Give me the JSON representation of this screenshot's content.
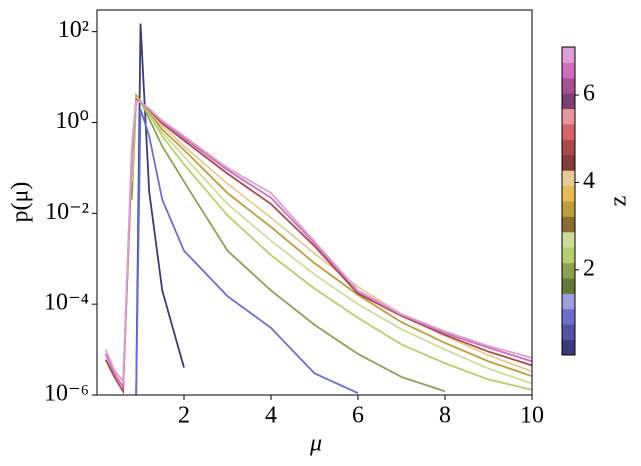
{
  "chart_data": {
    "type": "line",
    "x_label": "μ",
    "y_label": "p(μ)",
    "log_y": true,
    "x": [
      0.2,
      0.4,
      0.6,
      0.8,
      0.9,
      1.0,
      1.2,
      1.5,
      2,
      3,
      4,
      5,
      6,
      7,
      8,
      9,
      10
    ],
    "xlim": [
      0,
      10
    ],
    "xticks": [
      2,
      4,
      6,
      8,
      10
    ],
    "ylim": [
      1e-06,
      300
    ],
    "yticks": [
      {
        "value": 1e-06,
        "label": "10⁻⁶"
      },
      {
        "value": 0.0001,
        "label": "10⁻⁴"
      },
      {
        "value": 0.01,
        "label": "10⁻²"
      },
      {
        "value": 1,
        "label": "10⁰"
      },
      {
        "value": 100,
        "label": "10²"
      }
    ],
    "series": [
      {
        "color": "#393b79",
        "values": [
          null,
          null,
          null,
          null,
          1e-06,
          150,
          0.03,
          0.0002,
          4e-06,
          null,
          null,
          null,
          null,
          null,
          null,
          null,
          null
        ]
      },
      {
        "color": "#6b6ecf",
        "values": [
          null,
          null,
          null,
          null,
          1e-06,
          2,
          0.5,
          0.02,
          0.0015,
          0.00015,
          3e-05,
          3e-06,
          1.1e-06,
          null,
          null,
          null,
          null
        ]
      },
      {
        "color": "#8ca252",
        "values": [
          null,
          null,
          null,
          0.02,
          3,
          3,
          1.2,
          0.3,
          0.05,
          0.0015,
          0.0002,
          3.5e-05,
          8e-06,
          2.5e-06,
          1.2e-06,
          null,
          null
        ]
      },
      {
        "color": "#b5cf6b",
        "values": [
          null,
          null,
          null,
          0.05,
          3.5,
          3,
          1.5,
          0.5,
          0.12,
          0.009,
          0.0012,
          0.00022,
          5e-05,
          1.3e-05,
          5e-06,
          2.2e-06,
          1.3e-06
        ]
      },
      {
        "color": "#cedb9c",
        "values": [
          null,
          null,
          null,
          0.05,
          3.5,
          3,
          1.6,
          0.6,
          0.18,
          0.016,
          0.0025,
          0.00045,
          0.0001,
          2.8e-05,
          1e-05,
          3.8e-06,
          1.8e-06
        ]
      },
      {
        "color": "#bd9e39",
        "values": [
          null,
          null,
          2e-06,
          0.1,
          4,
          3,
          1.7,
          0.7,
          0.25,
          0.028,
          0.005,
          0.0008,
          0.00016,
          4e-05,
          1.4e-05,
          5.5e-06,
          2.6e-06
        ]
      },
      {
        "color": "#e7cb94",
        "values": [
          null,
          null,
          2e-06,
          0.15,
          3.5,
          2.9,
          1.8,
          0.85,
          0.3,
          0.045,
          0.008,
          0.0013,
          0.00024,
          6e-05,
          2e-05,
          7.5e-06,
          3.3e-06
        ]
      },
      {
        "color": "#ad494a",
        "values": [
          6e-06,
          2.5e-06,
          1.2e-06,
          0.2,
          3.2,
          2.8,
          1.9,
          0.95,
          0.4,
          0.075,
          0.016,
          0.0019,
          0.00017,
          5.5e-05,
          2.1e-05,
          9e-06,
          4.5e-06
        ]
      },
      {
        "color": "#ce6dbd",
        "values": [
          8e-06,
          3e-06,
          1.5e-06,
          0.25,
          3,
          2.8,
          2,
          1.05,
          0.45,
          0.09,
          0.022,
          0.0022,
          0.00019,
          5.8e-05,
          2.3e-05,
          1.1e-05,
          5.5e-06
        ]
      },
      {
        "color": "#de9ed6",
        "values": [
          1e-05,
          3.5e-06,
          2e-06,
          0.3,
          3,
          2.8,
          2,
          1.1,
          0.5,
          0.1,
          0.028,
          0.0024,
          0.0002,
          6e-05,
          2.5e-05,
          1.2e-05,
          6.6e-06
        ]
      }
    ],
    "colorbar": {
      "label": "z",
      "lim": [
        0.05,
        7.1
      ],
      "ticks": [
        2,
        4,
        6
      ],
      "colors": [
        "#393b79",
        "#5254a3",
        "#6b6ecf",
        "#9c9ede",
        "#637939",
        "#8ca252",
        "#b5cf6b",
        "#cedb9c",
        "#8c6d31",
        "#bd9e39",
        "#e7ba52",
        "#e7cb94",
        "#843c39",
        "#ad494a",
        "#d6616b",
        "#e7969c",
        "#7b4173",
        "#a55194",
        "#ce6dbd",
        "#de9ed6"
      ]
    }
  }
}
